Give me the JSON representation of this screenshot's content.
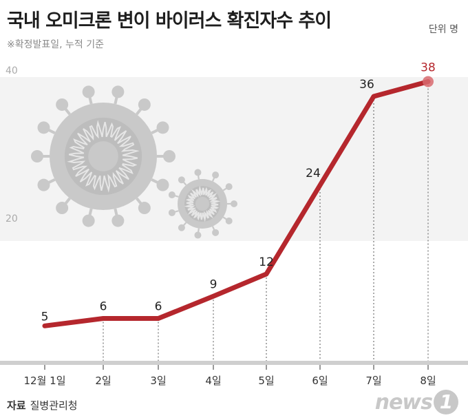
{
  "title": "국내 오미크론 변이 바이러스 확진자수 추이",
  "unit": "단위 명",
  "note": "※확정발표일, 누적 기준",
  "source": {
    "key": "자료",
    "value": "질병관리청"
  },
  "logo": {
    "text": "news",
    "badge": "1"
  },
  "colors": {
    "line": "#b5272d",
    "highlight_label": "#b5272d",
    "highlight_dot": "#d86a6e",
    "band": "#f3f3f3",
    "virus": "#c9c9c9",
    "axis": "#cfcfcf"
  },
  "chart_data": {
    "type": "line",
    "categories": [
      "12월 1일",
      "2일",
      "3일",
      "4일",
      "5일",
      "6일",
      "7일",
      "8일"
    ],
    "values": [
      5,
      6,
      6,
      9,
      12,
      24,
      36,
      38
    ],
    "data_labels": [
      "5",
      "6",
      "6",
      "9",
      "12",
      "24",
      "36",
      "38"
    ],
    "y_ticks": [
      "20",
      "40"
    ],
    "ylim": [
      0,
      40
    ],
    "highlight_index": 7
  }
}
